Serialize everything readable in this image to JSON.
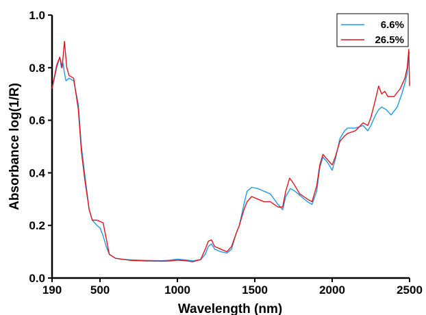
{
  "chart_data": {
    "type": "line",
    "title": "",
    "xlabel": "Wavelength (nm)",
    "ylabel": "Absorbance log(1/R)",
    "xlim": [
      190,
      2500
    ],
    "ylim": [
      0.0,
      1.0
    ],
    "x_ticks": [
      190,
      500,
      1000,
      1500,
      2000,
      2500
    ],
    "x_tick_labels": [
      "190",
      "500",
      "1000",
      "1500",
      "2000",
      "2500"
    ],
    "y_ticks": [
      0.0,
      0.2,
      0.4,
      0.6,
      0.8,
      1.0
    ],
    "y_tick_labels": [
      "0.0",
      "0.2",
      "0.4",
      "0.6",
      "0.8",
      "1.0"
    ],
    "grid": false,
    "legend_position": "top-right",
    "series": [
      {
        "name": "6.6%",
        "color": "#1a9be6",
        "points": [
          [
            190,
            0.72
          ],
          [
            220,
            0.8
          ],
          [
            240,
            0.84
          ],
          [
            250,
            0.8
          ],
          [
            260,
            0.82
          ],
          [
            270,
            0.78
          ],
          [
            280,
            0.75
          ],
          [
            300,
            0.76
          ],
          [
            330,
            0.75
          ],
          [
            360,
            0.66
          ],
          [
            380,
            0.5
          ],
          [
            400,
            0.4
          ],
          [
            430,
            0.26
          ],
          [
            450,
            0.22
          ],
          [
            480,
            0.2
          ],
          [
            500,
            0.19
          ],
          [
            520,
            0.16
          ],
          [
            540,
            0.12
          ],
          [
            560,
            0.09
          ],
          [
            600,
            0.075
          ],
          [
            650,
            0.071
          ],
          [
            700,
            0.069
          ],
          [
            800,
            0.067
          ],
          [
            900,
            0.066
          ],
          [
            950,
            0.068
          ],
          [
            1000,
            0.072
          ],
          [
            1050,
            0.069
          ],
          [
            1100,
            0.065
          ],
          [
            1150,
            0.07
          ],
          [
            1180,
            0.09
          ],
          [
            1200,
            0.12
          ],
          [
            1220,
            0.13
          ],
          [
            1240,
            0.11
          ],
          [
            1280,
            0.1
          ],
          [
            1320,
            0.095
          ],
          [
            1350,
            0.11
          ],
          [
            1380,
            0.17
          ],
          [
            1400,
            0.2
          ],
          [
            1430,
            0.28
          ],
          [
            1450,
            0.33
          ],
          [
            1480,
            0.345
          ],
          [
            1520,
            0.34
          ],
          [
            1560,
            0.33
          ],
          [
            1600,
            0.32
          ],
          [
            1650,
            0.28
          ],
          [
            1680,
            0.26
          ],
          [
            1700,
            0.31
          ],
          [
            1730,
            0.34
          ],
          [
            1760,
            0.33
          ],
          [
            1800,
            0.31
          ],
          [
            1840,
            0.29
          ],
          [
            1870,
            0.28
          ],
          [
            1900,
            0.33
          ],
          [
            1920,
            0.42
          ],
          [
            1940,
            0.46
          ],
          [
            1970,
            0.44
          ],
          [
            2000,
            0.41
          ],
          [
            2020,
            0.45
          ],
          [
            2050,
            0.53
          ],
          [
            2080,
            0.56
          ],
          [
            2100,
            0.57
          ],
          [
            2150,
            0.57
          ],
          [
            2200,
            0.58
          ],
          [
            2230,
            0.56
          ],
          [
            2250,
            0.58
          ],
          [
            2280,
            0.62
          ],
          [
            2300,
            0.64
          ],
          [
            2320,
            0.65
          ],
          [
            2350,
            0.64
          ],
          [
            2380,
            0.62
          ],
          [
            2420,
            0.65
          ],
          [
            2450,
            0.7
          ],
          [
            2470,
            0.74
          ],
          [
            2485,
            0.78
          ],
          [
            2495,
            0.85
          ],
          [
            2500,
            0.86
          ]
        ]
      },
      {
        "name": "26.5%",
        "color": "#e0141e",
        "points": [
          [
            190,
            0.72
          ],
          [
            220,
            0.81
          ],
          [
            240,
            0.84
          ],
          [
            255,
            0.8
          ],
          [
            270,
            0.9
          ],
          [
            285,
            0.8
          ],
          [
            300,
            0.77
          ],
          [
            330,
            0.76
          ],
          [
            360,
            0.64
          ],
          [
            380,
            0.48
          ],
          [
            400,
            0.38
          ],
          [
            430,
            0.26
          ],
          [
            450,
            0.22
          ],
          [
            480,
            0.22
          ],
          [
            520,
            0.21
          ],
          [
            540,
            0.15
          ],
          [
            560,
            0.09
          ],
          [
            600,
            0.075
          ],
          [
            700,
            0.067
          ],
          [
            800,
            0.065
          ],
          [
            900,
            0.064
          ],
          [
            950,
            0.065
          ],
          [
            1000,
            0.068
          ],
          [
            1050,
            0.066
          ],
          [
            1100,
            0.062
          ],
          [
            1150,
            0.07
          ],
          [
            1180,
            0.11
          ],
          [
            1200,
            0.14
          ],
          [
            1220,
            0.145
          ],
          [
            1240,
            0.12
          ],
          [
            1280,
            0.11
          ],
          [
            1320,
            0.1
          ],
          [
            1350,
            0.12
          ],
          [
            1380,
            0.17
          ],
          [
            1400,
            0.2
          ],
          [
            1430,
            0.26
          ],
          [
            1450,
            0.29
          ],
          [
            1480,
            0.31
          ],
          [
            1520,
            0.3
          ],
          [
            1560,
            0.29
          ],
          [
            1600,
            0.29
          ],
          [
            1650,
            0.27
          ],
          [
            1680,
            0.27
          ],
          [
            1700,
            0.33
          ],
          [
            1725,
            0.38
          ],
          [
            1750,
            0.36
          ],
          [
            1790,
            0.32
          ],
          [
            1840,
            0.3
          ],
          [
            1870,
            0.29
          ],
          [
            1900,
            0.35
          ],
          [
            1920,
            0.43
          ],
          [
            1940,
            0.47
          ],
          [
            1970,
            0.45
          ],
          [
            2000,
            0.43
          ],
          [
            2020,
            0.46
          ],
          [
            2050,
            0.52
          ],
          [
            2080,
            0.54
          ],
          [
            2100,
            0.55
          ],
          [
            2150,
            0.56
          ],
          [
            2200,
            0.59
          ],
          [
            2230,
            0.58
          ],
          [
            2250,
            0.61
          ],
          [
            2280,
            0.68
          ],
          [
            2300,
            0.73
          ],
          [
            2320,
            0.7
          ],
          [
            2340,
            0.71
          ],
          [
            2360,
            0.69
          ],
          [
            2400,
            0.69
          ],
          [
            2440,
            0.72
          ],
          [
            2470,
            0.76
          ],
          [
            2485,
            0.8
          ],
          [
            2495,
            0.87
          ],
          [
            2500,
            0.73
          ]
        ]
      }
    ]
  }
}
